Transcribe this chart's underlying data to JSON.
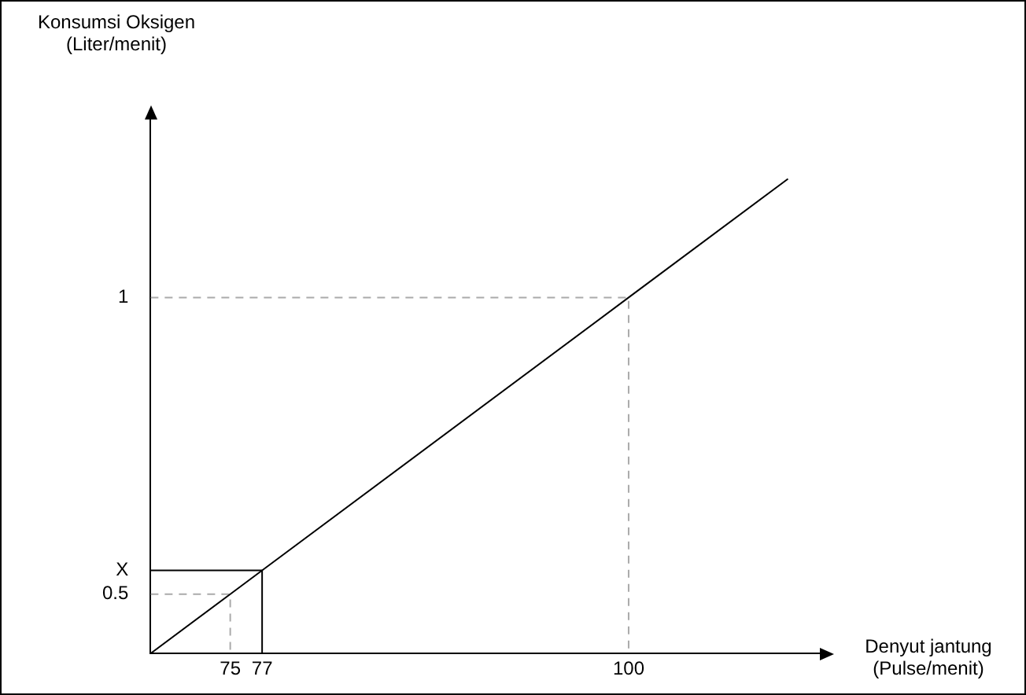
{
  "chart_data": {
    "type": "line",
    "xlabel": "Denyut jantung (Pulse/menit)",
    "ylabel": "Konsumsi Oksigen (Liter/menit)",
    "xlim": [
      70,
      112
    ],
    "ylim": [
      0.4,
      1.3
    ],
    "xticks": [
      75,
      77,
      100
    ],
    "yticks": [
      0.5,
      {
        "value": 0.54,
        "label": "X"
      },
      1
    ],
    "series": [
      {
        "color": "#000000",
        "line_style": "solid",
        "x": [
          70,
          75,
          77,
          100,
          110
        ],
        "values": [
          0.4,
          0.5,
          0.54,
          1,
          1.2
        ]
      },
      {
        "color": "#aaaaaa",
        "line_style": "dashed",
        "x": [
          70,
          100,
          100
        ],
        "values": [
          1,
          1,
          0.4
        ]
      },
      {
        "color": "#aaaaaa",
        "line_style": "dashed",
        "x": [
          70,
          75,
          75
        ],
        "values": [
          0.5,
          0.5,
          0.4
        ]
      },
      {
        "color": "#000000",
        "line_style": "solid",
        "x": [
          70,
          77,
          77
        ],
        "values": [
          0.54,
          0.54,
          0.4
        ]
      }
    ],
    "grid": false,
    "legend": false,
    "marker": "none"
  }
}
